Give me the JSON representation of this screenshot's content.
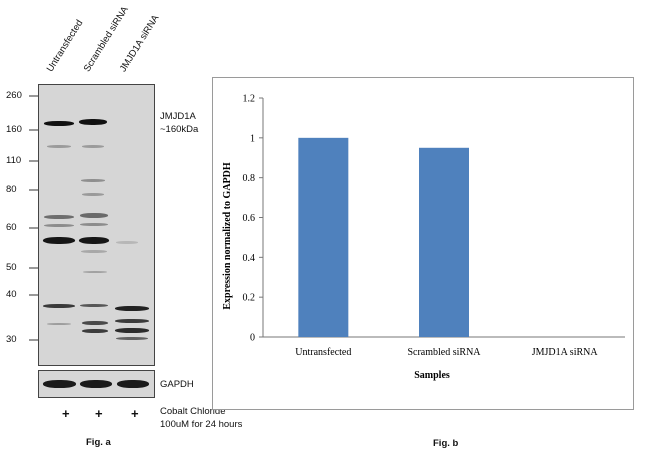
{
  "western_blot": {
    "lane_labels": [
      "Untransfected",
      "Scrambled siRNA",
      "JMJD1A siRNA"
    ],
    "mw_markers": [
      "260",
      "160",
      "110",
      "80",
      "60",
      "50",
      "40",
      "30"
    ],
    "target_label_line1": "JMJD1A",
    "target_label_line2": "~160kDa",
    "loading_control_label": "GAPDH",
    "treatment_symbols": [
      "+",
      "+",
      "+"
    ],
    "treatment_line1": "Cobalt Chloride",
    "treatment_line2": "100uM for 24 hours",
    "figure_caption": "Fig. a"
  },
  "figure_caption_b": "Fig. b",
  "chart_data": {
    "type": "bar",
    "categories": [
      "Untransfected",
      "Scrambled siRNA",
      "JMJD1A siRNA"
    ],
    "values": [
      1.0,
      0.95,
      0.0
    ],
    "xlabel": "Samples",
    "ylabel": "Expression normalized to GAPDH",
    "ylim": [
      0,
      1.2
    ],
    "yticks": [
      "0",
      "0.2",
      "0.4",
      "0.6",
      "0.8",
      "1",
      "1.2"
    ],
    "bar_color": "#4f81bd",
    "grid": false,
    "legend": "none"
  }
}
